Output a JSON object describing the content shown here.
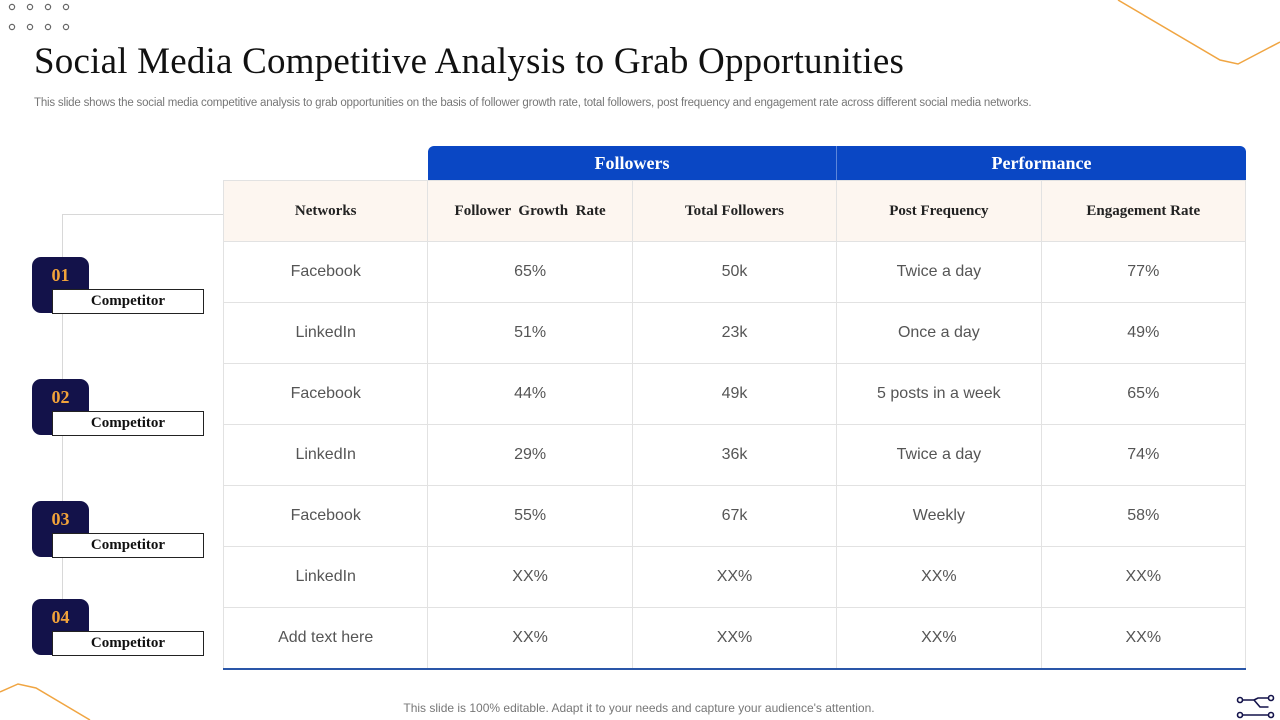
{
  "title": "Social Media Competitive Analysis to Grab Opportunities",
  "subtitle": "This slide shows the social media competitive analysis to grab opportunities on the basis of follower growth rate, total followers, post frequency and engagement rate across different social media networks.",
  "groups": {
    "followers": "Followers",
    "performance": "Performance"
  },
  "columns": [
    "Networks",
    "Follower  Growth  Rate",
    "Total Followers",
    "Post Frequency",
    "Engagement Rate"
  ],
  "rows": [
    [
      "Facebook",
      "65%",
      "50k",
      "Twice a day",
      "77%"
    ],
    [
      "LinkedIn",
      "51%",
      "23k",
      "Once a day",
      "49%"
    ],
    [
      "Facebook",
      "44%",
      "49k",
      "5 posts in a week",
      "65%"
    ],
    [
      "LinkedIn",
      "29%",
      "36k",
      "Twice a day",
      "74%"
    ],
    [
      "Facebook",
      "55%",
      "67k",
      "Weekly",
      "58%"
    ],
    [
      "LinkedIn",
      "XX%",
      "XX%",
      "XX%",
      "XX%"
    ],
    [
      "Add text here",
      "XX%",
      "XX%",
      "XX%",
      "XX%"
    ]
  ],
  "competitors": [
    {
      "number": "01",
      "label": "Competitor"
    },
    {
      "number": "02",
      "label": "Competitor"
    },
    {
      "number": "03",
      "label": "Competitor"
    },
    {
      "number": "04",
      "label": "Competitor"
    }
  ],
  "footer": "This slide is 100% editable. Adapt it to your needs and capture your audience's attention.",
  "colors": {
    "header_blue": "#0a47c4",
    "badge_navy": "#13124a",
    "number_orange": "#f2a33a",
    "header_row_bg": "#fdf6f0",
    "accent_line": "#f0a542"
  },
  "icons": {
    "decor_dots": "dot-grid-icon",
    "network": "network-icon"
  }
}
